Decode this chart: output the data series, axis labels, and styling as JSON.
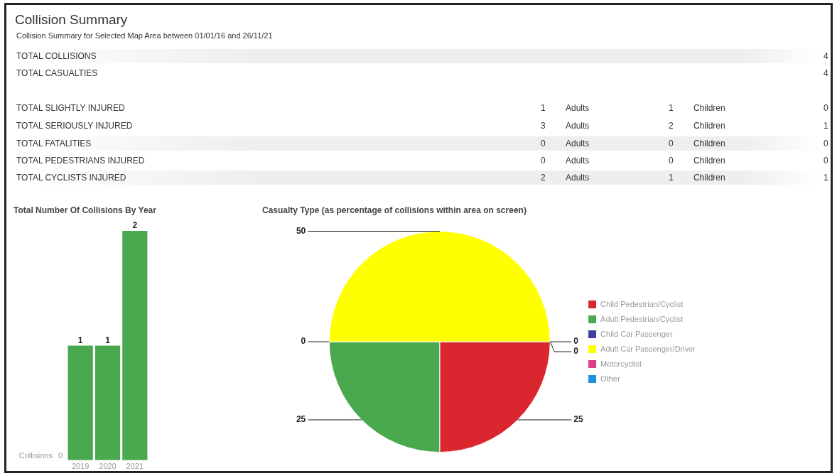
{
  "chart_data": [
    {
      "type": "other",
      "title": "Collision Summary",
      "subtitle": "Collision Summary for Selected Map Area between 01/01/16 and 26/11/21",
      "categories": [
        null,
        "Adults",
        "Children"
      ],
      "y_categories": [
        "TOTAL COLLISIONS",
        "TOTAL CASUALTIES",
        "TOTAL SLIGHTLY INJURED",
        "TOTAL SERIOUSLY INJURED",
        "TOTAL FATALITIES",
        "TOTAL PEDESTRIANS INJURED",
        "TOTAL CYCLISTS INJURED"
      ],
      "cell_labels": [
        [
          null,
          null,
          "4"
        ],
        [
          null,
          null,
          "4"
        ],
        [
          "1",
          "1",
          "0"
        ],
        [
          "3",
          "2",
          "1"
        ],
        [
          "0",
          "0",
          "0"
        ],
        [
          "0",
          "0",
          "0"
        ],
        [
          "2",
          "1",
          "1"
        ]
      ]
    },
    {
      "type": "bar",
      "title": "Total Number Of Collisions By Year",
      "ylabel": "Collisions",
      "categories": [
        "2019",
        "2020",
        "2021"
      ],
      "values": [
        1,
        1,
        2
      ],
      "color": "#4aa84f",
      "annotations": [
        "0"
      ],
      "data_labels": true,
      "grid": false,
      "legend": false
    },
    {
      "type": "pie",
      "title": "Casualty Type (as percentage of collisions within area on screen)",
      "categories": [
        "Child Pedestrian/Cyclist",
        "Adult Pedestrian/Cyclist",
        "Child Car Passenger",
        "Adult Car Passenger/Driver",
        "Motorcyclist",
        "Other"
      ],
      "values": [
        25,
        25,
        0,
        50,
        0,
        0
      ],
      "colors": [
        "#d9262f",
        "#4aa84f",
        "#3b3f9e",
        "#ffff00",
        "#dc3c84",
        "#1e90dc"
      ],
      "data_labels": true,
      "legend": "right"
    }
  ]
}
